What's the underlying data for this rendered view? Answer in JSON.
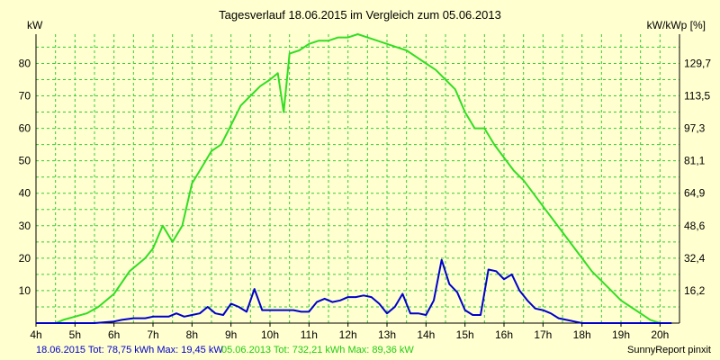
{
  "chart_data": {
    "type": "line",
    "title": "Tagesverlauf 18.06.2015 im Vergleich zum 05.06.2013",
    "ylabel": "kW",
    "ylabel_right": "kW/kWp [%]",
    "ylim": [
      0,
      89
    ],
    "xlim": [
      4,
      20.5
    ],
    "grid": true,
    "x_ticks": [
      {
        "x": 4,
        "label": "4h"
      },
      {
        "x": 5,
        "label": "5h"
      },
      {
        "x": 6,
        "label": "6h"
      },
      {
        "x": 7,
        "label": "7h"
      },
      {
        "x": 8,
        "label": "8h"
      },
      {
        "x": 9,
        "label": "9h"
      },
      {
        "x": 10,
        "label": "10h"
      },
      {
        "x": 11,
        "label": "11h"
      },
      {
        "x": 12,
        "label": "12h"
      },
      {
        "x": 13,
        "label": "13h"
      },
      {
        "x": 14,
        "label": "14h"
      },
      {
        "x": 15,
        "label": "15h"
      },
      {
        "x": 16,
        "label": "16h"
      },
      {
        "x": 17,
        "label": "17h"
      },
      {
        "x": 18,
        "label": "18h"
      },
      {
        "x": 19,
        "label": "19h"
      },
      {
        "x": 20,
        "label": "20h"
      }
    ],
    "y_ticks": [
      {
        "y": 10,
        "label": "10"
      },
      {
        "y": 20,
        "label": "20"
      },
      {
        "y": 30,
        "label": "30"
      },
      {
        "y": 40,
        "label": "40"
      },
      {
        "y": 50,
        "label": "50"
      },
      {
        "y": 60,
        "label": "60"
      },
      {
        "y": 70,
        "label": "70"
      },
      {
        "y": 80,
        "label": "80"
      }
    ],
    "y2_ticks": [
      {
        "y": 10,
        "label": "16,2"
      },
      {
        "y": 20,
        "label": "32,4"
      },
      {
        "y": 30,
        "label": "48,6"
      },
      {
        "y": 40,
        "label": "64,9"
      },
      {
        "y": 50,
        "label": "81,1"
      },
      {
        "y": 60,
        "label": "97,3"
      },
      {
        "y": 70,
        "label": "113,5"
      },
      {
        "y": 80,
        "label": "129,7"
      }
    ],
    "series": [
      {
        "name": "05.06.2013",
        "color": "#33DD22",
        "x": [
          4.0,
          4.5,
          4.7,
          5.0,
          5.3,
          5.6,
          6.0,
          6.4,
          6.8,
          7.0,
          7.25,
          7.5,
          7.75,
          8.0,
          8.25,
          8.5,
          8.75,
          9.0,
          9.25,
          9.5,
          9.75,
          10.0,
          10.2,
          10.35,
          10.5,
          10.75,
          11.0,
          11.25,
          11.5,
          11.75,
          12.0,
          12.25,
          12.5,
          12.75,
          13.0,
          13.25,
          13.5,
          13.75,
          14.0,
          14.25,
          14.5,
          14.75,
          15.0,
          15.25,
          15.5,
          15.75,
          16.0,
          16.25,
          16.5,
          16.75,
          17.0,
          17.25,
          17.5,
          17.75,
          18.0,
          18.25,
          18.5,
          18.75,
          19.0,
          19.25,
          19.5,
          19.75,
          20.0,
          20.3
        ],
        "values": [
          0,
          0,
          1,
          2,
          3,
          5,
          9,
          16,
          20,
          23,
          30,
          25,
          30,
          43,
          48,
          53,
          55,
          61,
          67,
          70,
          73,
          75,
          77,
          65,
          83,
          84,
          86,
          87,
          87,
          88,
          88,
          89,
          88,
          87,
          86,
          85,
          84,
          82,
          80,
          78,
          75,
          72,
          65,
          60,
          60,
          55,
          51,
          47,
          44,
          40,
          36,
          32,
          28,
          24,
          20,
          16,
          13,
          10,
          7,
          5,
          3,
          1,
          0,
          0
        ]
      },
      {
        "name": "18.06.2015",
        "color": "#0000CC",
        "x": [
          4.0,
          5.5,
          6.0,
          6.2,
          6.5,
          6.8,
          7.0,
          7.2,
          7.4,
          7.6,
          7.8,
          8.0,
          8.2,
          8.4,
          8.6,
          8.8,
          9.0,
          9.2,
          9.4,
          9.6,
          9.8,
          10.0,
          10.2,
          10.4,
          10.6,
          10.8,
          11.0,
          11.2,
          11.4,
          11.6,
          11.8,
          12.0,
          12.2,
          12.4,
          12.6,
          12.8,
          13.0,
          13.2,
          13.4,
          13.6,
          13.8,
          14.0,
          14.2,
          14.4,
          14.6,
          14.8,
          15.0,
          15.2,
          15.4,
          15.6,
          15.8,
          16.0,
          16.2,
          16.4,
          16.6,
          16.8,
          17.0,
          17.2,
          17.4,
          17.6,
          17.8,
          18.0,
          18.2,
          18.4,
          18.6,
          18.8,
          19.0,
          19.2,
          19.4,
          19.6,
          20.0,
          20.3
        ],
        "values": [
          0,
          0,
          0.5,
          1,
          1.5,
          1.5,
          2,
          2,
          2,
          3,
          2,
          2.5,
          3,
          5,
          3,
          2.5,
          6,
          5,
          3.5,
          10.5,
          4,
          4,
          4,
          4,
          4,
          3.5,
          3.5,
          6.5,
          7.5,
          6.5,
          7,
          8,
          8,
          8.5,
          8,
          6,
          3,
          5,
          9,
          3,
          3,
          2.5,
          7,
          19.5,
          12,
          9.5,
          4,
          2.5,
          2.5,
          16.5,
          16,
          13.5,
          15,
          10,
          7,
          4.5,
          4,
          3,
          1.5,
          1,
          0.5,
          0,
          0,
          0,
          0,
          0,
          0,
          0,
          0,
          0,
          0,
          0
        ]
      }
    ],
    "legend": [
      {
        "text": "18.06.2015 Tot: 78,75 kWh Max: 19,45 kW",
        "color": "#0000CC"
      },
      {
        "text": "05.06.2013 Tot: 732,21 kWh Max: 89,36 kW",
        "color": "#33DD22"
      }
    ],
    "footer": "SunnyReport pinxit"
  }
}
